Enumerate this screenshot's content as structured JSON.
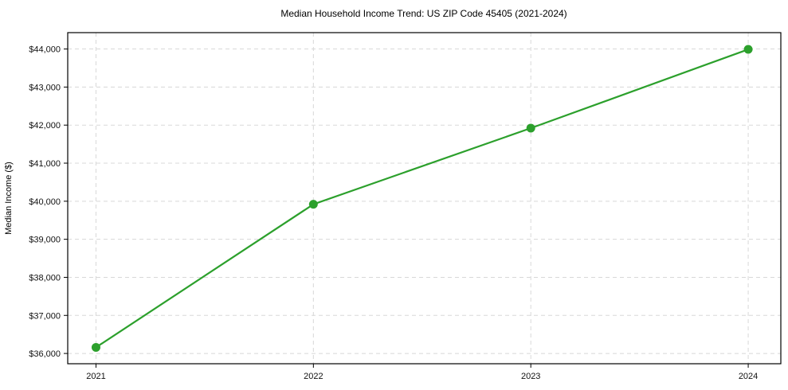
{
  "chart_data": {
    "type": "line",
    "title": "Median Household Income Trend: US ZIP Code 45405 (2021-2024)",
    "xlabel": "",
    "ylabel": "Median Income ($)",
    "x": [
      2021,
      2022,
      2023,
      2024
    ],
    "x_tick_labels": [
      "2021",
      "2022",
      "2023",
      "2024"
    ],
    "series": [
      {
        "name": "Median Household Income",
        "values": [
          36160,
          39920,
          41920,
          43990
        ]
      }
    ],
    "y_ticks": [
      36000,
      37000,
      38000,
      39000,
      40000,
      41000,
      42000,
      43000,
      44000
    ],
    "y_tick_labels": [
      "$36,000",
      "$37,000",
      "$38,000",
      "$39,000",
      "$40,000",
      "$41,000",
      "$42,000",
      "$43,000",
      "$44,000"
    ],
    "xlim": [
      2020.87,
      2024.15
    ],
    "ylim": [
      35730,
      44430
    ],
    "grid": "both-dashed",
    "legend": "none",
    "colors": {
      "line": "#2ca02c",
      "marker": "#2ca02c",
      "gridline": "#d8d8d8",
      "spine": "#000000",
      "text": "#111111",
      "background": "#ffffff"
    }
  }
}
